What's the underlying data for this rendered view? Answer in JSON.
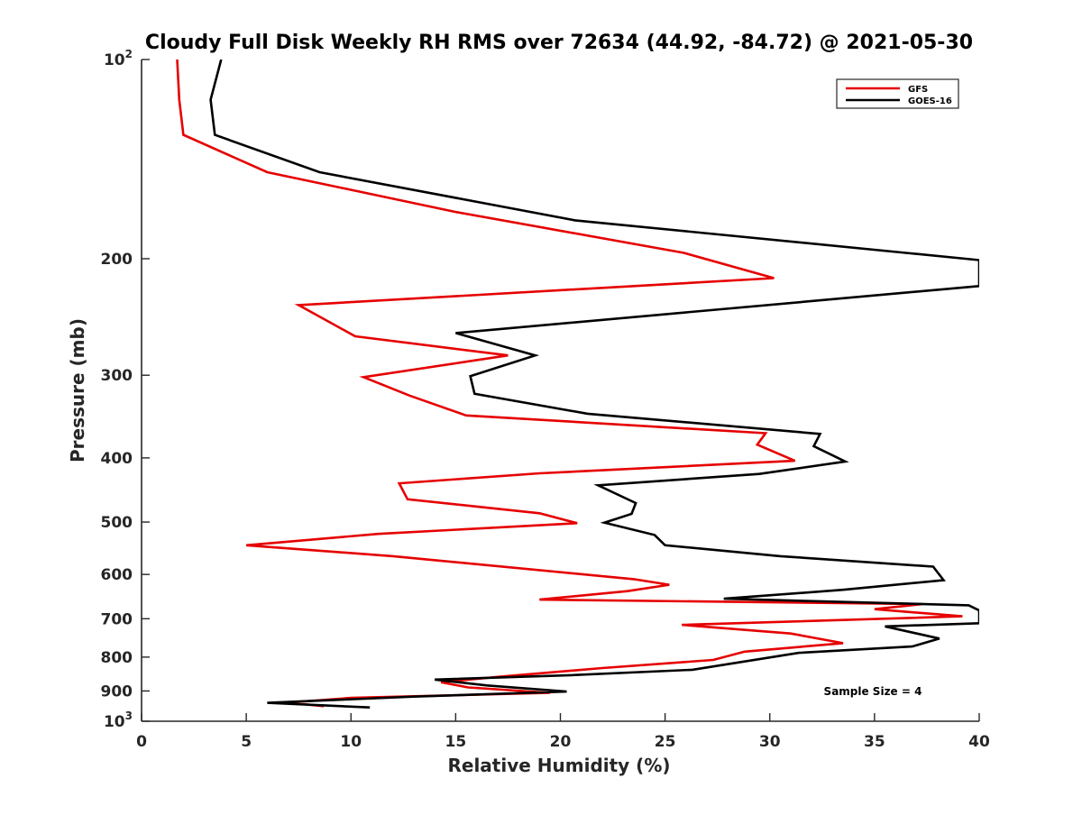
{
  "chart_data": {
    "type": "line",
    "title": "Cloudy Full Disk Weekly RH RMS over 72634 (44.92, -84.72) @ 2021-05-30",
    "xlabel": "Relative Humidity (%)",
    "ylabel": "Pressure (mb)",
    "xlim": [
      0,
      40
    ],
    "ylim": [
      100,
      1000
    ],
    "y_scale": "log",
    "y_reversed": true,
    "xticks": [
      0,
      5,
      10,
      15,
      20,
      25,
      30,
      35,
      40
    ],
    "yticks": [
      {
        "value": 100,
        "base": "10",
        "exp": "2"
      },
      {
        "value": 200,
        "label": "200"
      },
      {
        "value": 300,
        "label": "300"
      },
      {
        "value": 400,
        "label": "400"
      },
      {
        "value": 500,
        "label": "500"
      },
      {
        "value": 600,
        "label": "600"
      },
      {
        "value": 700,
        "label": "700"
      },
      {
        "value": 800,
        "label": "800"
      },
      {
        "value": 900,
        "label": "900"
      },
      {
        "value": 1000,
        "base": "10",
        "exp": "3"
      }
    ],
    "grid": false,
    "legend_position": "top-right",
    "annotation": "Sample Size = 4",
    "series": [
      {
        "name": "GFS",
        "color": "#e60000",
        "points": [
          [
            1.7,
            100
          ],
          [
            1.8,
            115
          ],
          [
            2.0,
            130
          ],
          [
            6.0,
            148
          ],
          [
            15.0,
            170
          ],
          [
            25.9,
            196
          ],
          [
            30.2,
            214
          ],
          [
            7.5,
            235
          ],
          [
            10.2,
            262
          ],
          [
            17.5,
            280
          ],
          [
            10.6,
            302
          ],
          [
            12.8,
            322
          ],
          [
            15.5,
            345
          ],
          [
            29.8,
            367
          ],
          [
            29.4,
            382
          ],
          [
            31.2,
            404
          ],
          [
            19.0,
            422
          ],
          [
            12.3,
            437
          ],
          [
            12.7,
            462
          ],
          [
            19.0,
            485
          ],
          [
            20.8,
            502
          ],
          [
            11.3,
            521
          ],
          [
            5.0,
            542
          ],
          [
            12.0,
            563
          ],
          [
            23.5,
            610
          ],
          [
            25.2,
            622
          ],
          [
            23.2,
            636
          ],
          [
            19.0,
            655
          ],
          [
            37.3,
            665
          ],
          [
            35.0,
            677
          ],
          [
            39.2,
            694
          ],
          [
            25.8,
            715
          ],
          [
            31.0,
            737
          ],
          [
            33.5,
            762
          ],
          [
            28.8,
            785
          ],
          [
            27.3,
            808
          ],
          [
            22.0,
            831
          ],
          [
            17.0,
            857
          ],
          [
            14.3,
            873
          ],
          [
            15.6,
            889
          ],
          [
            19.5,
            906
          ],
          [
            10.0,
            922
          ],
          [
            7.0,
            937
          ],
          [
            8.7,
            949
          ]
        ]
      },
      {
        "name": "GOES-16",
        "color": "#000000",
        "points": [
          [
            3.8,
            100
          ],
          [
            3.3,
            115
          ],
          [
            3.5,
            130
          ],
          [
            8.5,
            148
          ],
          [
            20.7,
            175
          ],
          [
            36.5,
            196
          ],
          [
            40.0,
            201
          ],
          [
            40.0,
            220
          ],
          [
            15.0,
            259
          ],
          [
            18.8,
            280
          ],
          [
            15.7,
            301
          ],
          [
            15.9,
            320
          ],
          [
            21.3,
            343
          ],
          [
            32.4,
            368
          ],
          [
            32.1,
            384
          ],
          [
            33.6,
            405
          ],
          [
            29.5,
            423
          ],
          [
            21.8,
            440
          ],
          [
            23.6,
            468
          ],
          [
            23.4,
            486
          ],
          [
            22.1,
            501
          ],
          [
            24.5,
            523
          ],
          [
            25.0,
            542
          ],
          [
            30.5,
            563
          ],
          [
            37.8,
            584
          ],
          [
            38.3,
            612
          ],
          [
            33.5,
            633
          ],
          [
            27.8,
            653
          ],
          [
            39.5,
            668
          ],
          [
            40.0,
            680
          ],
          [
            40.0,
            711
          ],
          [
            35.5,
            719
          ],
          [
            38.1,
            750
          ],
          [
            36.8,
            771
          ],
          [
            31.4,
            788
          ],
          [
            26.3,
            836
          ],
          [
            20.5,
            852
          ],
          [
            14.0,
            865
          ],
          [
            16.5,
            883
          ],
          [
            20.3,
            902
          ],
          [
            13.0,
            918
          ],
          [
            6.0,
            938
          ],
          [
            10.9,
            953
          ]
        ]
      }
    ]
  }
}
